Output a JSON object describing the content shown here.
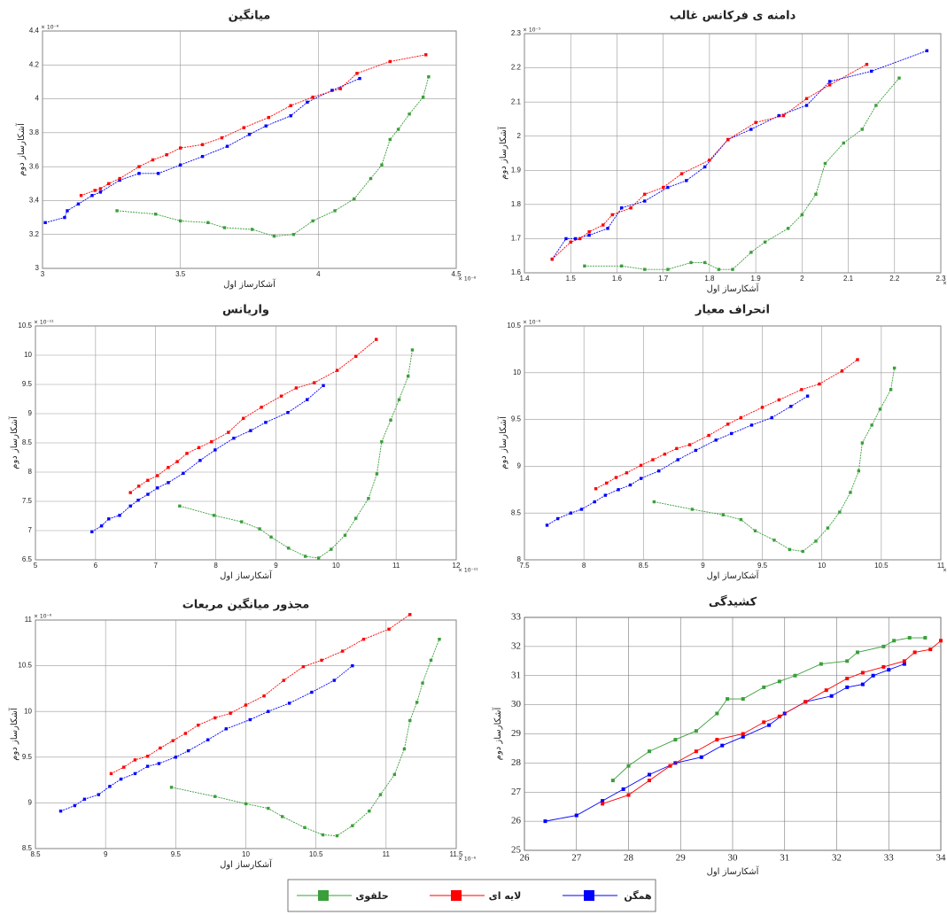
{
  "chart_data": [
    {
      "type": "line",
      "title": "میانگین",
      "xlabel": "آشکارساز اول",
      "ylabel": "آشکارساز دوم",
      "x_exponent": "× 10⁻⁸",
      "y_exponent": "× 10⁻⁸",
      "xlim": [
        3,
        4.5
      ],
      "ylim": [
        3,
        4.4
      ],
      "xticks": [
        3,
        3.5,
        4,
        4.5
      ],
      "yticks": [
        3,
        3.2,
        3.4,
        3.6,
        3.8,
        4,
        4.2,
        4.4
      ],
      "grid": true,
      "series": [
        {
          "color": "#0000ff",
          "x": [
            3.01,
            3.08,
            3.09,
            3.13,
            3.18,
            3.21,
            3.28,
            3.35,
            3.42,
            3.5,
            3.58,
            3.67,
            3.75,
            3.81,
            3.9,
            3.96,
            4.05,
            4.15
          ],
          "values": [
            3.27,
            3.3,
            3.34,
            3.38,
            3.43,
            3.45,
            3.52,
            3.56,
            3.56,
            3.61,
            3.66,
            3.72,
            3.79,
            3.84,
            3.9,
            3.98,
            4.05,
            4.12
          ]
        },
        {
          "color": "#ff0000",
          "x": [
            3.14,
            3.19,
            3.21,
            3.24,
            3.28,
            3.35,
            3.4,
            3.45,
            3.5,
            3.58,
            3.65,
            3.73,
            3.82,
            3.9,
            3.98,
            4.08,
            4.14,
            4.26,
            4.39
          ],
          "values": [
            3.43,
            3.46,
            3.47,
            3.5,
            3.53,
            3.6,
            3.64,
            3.67,
            3.71,
            3.73,
            3.77,
            3.83,
            3.89,
            3.96,
            4.01,
            4.06,
            4.15,
            4.22,
            4.26
          ]
        },
        {
          "color": "#3a9f3a",
          "x": [
            3.27,
            3.41,
            3.5,
            3.6,
            3.66,
            3.76,
            3.84,
            3.91,
            3.98,
            4.06,
            4.13,
            4.19,
            4.23,
            4.26,
            4.29,
            4.33,
            4.38,
            4.4
          ],
          "values": [
            3.34,
            3.32,
            3.28,
            3.27,
            3.24,
            3.23,
            3.19,
            3.2,
            3.28,
            3.34,
            3.41,
            3.53,
            3.61,
            3.76,
            3.82,
            3.91,
            4.01,
            4.13
          ]
        }
      ]
    },
    {
      "type": "line",
      "title": "دامنه ی فرکانس غالب",
      "xlabel": "آشکارساز اول",
      "ylabel": "آشکارساز دوم",
      "x_exponent": "× 10⁻⁵",
      "y_exponent": "× 10⁻⁵",
      "xlim": [
        1.4,
        2.3
      ],
      "ylim": [
        1.6,
        2.3
      ],
      "xticks": [
        1.4,
        1.5,
        1.6,
        1.7,
        1.8,
        1.9,
        2,
        2.1,
        2.2,
        2.3
      ],
      "yticks": [
        1.6,
        1.7,
        1.8,
        1.9,
        2,
        2.1,
        2.2,
        2.3
      ],
      "grid": true,
      "series": [
        {
          "color": "#0000ff",
          "x": [
            1.46,
            1.49,
            1.51,
            1.54,
            1.58,
            1.61,
            1.66,
            1.71,
            1.75,
            1.79,
            1.84,
            1.89,
            1.95,
            2.01,
            2.06,
            2.15,
            2.27
          ],
          "values": [
            1.64,
            1.7,
            1.7,
            1.71,
            1.73,
            1.79,
            1.81,
            1.85,
            1.87,
            1.91,
            1.99,
            2.02,
            2.06,
            2.09,
            2.16,
            2.19,
            2.25
          ]
        },
        {
          "color": "#ff0000",
          "x": [
            1.46,
            1.5,
            1.52,
            1.54,
            1.57,
            1.59,
            1.63,
            1.66,
            1.7,
            1.74,
            1.8,
            1.84,
            1.9,
            1.96,
            2.01,
            2.06,
            2.14
          ],
          "values": [
            1.64,
            1.69,
            1.7,
            1.72,
            1.74,
            1.77,
            1.79,
            1.83,
            1.85,
            1.89,
            1.93,
            1.99,
            2.04,
            2.06,
            2.11,
            2.15,
            2.21
          ]
        },
        {
          "color": "#3a9f3a",
          "x": [
            1.53,
            1.61,
            1.66,
            1.71,
            1.76,
            1.79,
            1.82,
            1.85,
            1.89,
            1.92,
            1.97,
            2,
            2.03,
            2.05,
            2.09,
            2.13,
            2.16,
            2.21
          ],
          "values": [
            1.62,
            1.62,
            1.61,
            1.61,
            1.63,
            1.63,
            1.61,
            1.61,
            1.66,
            1.69,
            1.73,
            1.77,
            1.83,
            1.92,
            1.98,
            2.02,
            2.09,
            2.17
          ]
        }
      ]
    },
    {
      "type": "line",
      "title": "واریانس",
      "xlabel": "آشکارساز اول",
      "ylabel": "آشکارساز دوم",
      "x_exponent": "× 10⁻¹¹",
      "y_exponent": "× 10⁻¹¹",
      "xlim": [
        5,
        12
      ],
      "ylim": [
        6.5,
        10.5
      ],
      "xticks": [
        5,
        6,
        7,
        8,
        9,
        10,
        11,
        12
      ],
      "yticks": [
        6.5,
        7,
        7.5,
        8,
        8.5,
        9,
        9.5,
        10,
        10.5
      ],
      "grid": true,
      "series": [
        {
          "color": "#0000ff",
          "x": [
            5.94,
            6.1,
            6.22,
            6.4,
            6.58,
            6.71,
            6.87,
            7.03,
            7.21,
            7.46,
            7.74,
            7.99,
            8.3,
            8.58,
            8.83,
            9.2,
            9.52,
            9.79
          ],
          "values": [
            6.98,
            7.08,
            7.2,
            7.26,
            7.42,
            7.52,
            7.62,
            7.73,
            7.82,
            7.98,
            8.2,
            8.38,
            8.58,
            8.71,
            8.85,
            9.02,
            9.24,
            9.48
          ]
        },
        {
          "color": "#ff0000",
          "x": [
            6.58,
            6.72,
            6.87,
            7.03,
            7.21,
            7.36,
            7.52,
            7.72,
            7.93,
            8.21,
            8.46,
            8.76,
            9.09,
            9.34,
            9.64,
            10.02,
            10.33,
            10.67
          ],
          "values": [
            7.65,
            7.76,
            7.86,
            7.94,
            8.08,
            8.18,
            8.32,
            8.42,
            8.52,
            8.68,
            8.92,
            9.11,
            9.3,
            9.44,
            9.53,
            9.74,
            9.98,
            10.27
          ]
        },
        {
          "color": "#3a9f3a",
          "x": [
            7.4,
            7.97,
            8.43,
            8.73,
            8.92,
            9.21,
            9.49,
            9.71,
            9.92,
            10.15,
            10.33,
            10.54,
            10.68,
            10.76,
            10.91,
            11.05,
            11.2,
            11.27
          ],
          "values": [
            7.42,
            7.26,
            7.15,
            7.03,
            6.89,
            6.7,
            6.56,
            6.53,
            6.68,
            6.92,
            7.21,
            7.55,
            7.97,
            8.52,
            8.89,
            9.24,
            9.64,
            10.09
          ]
        }
      ]
    },
    {
      "type": "line",
      "title": "انحراف معیار",
      "xlabel": "آشکارساز اول",
      "ylabel": "آشکارساز دوم",
      "x_exponent": "× 10⁻⁶",
      "y_exponent": "× 10⁻⁶",
      "xlim": [
        7.5,
        11
      ],
      "ylim": [
        8,
        10.5
      ],
      "xticks": [
        7.5,
        8,
        8.5,
        9,
        9.5,
        10,
        10.5,
        11
      ],
      "yticks": [
        8,
        8.5,
        9,
        9.5,
        10,
        10.5
      ],
      "grid": true,
      "series": [
        {
          "color": "#0000ff",
          "x": [
            7.69,
            7.78,
            7.89,
            7.98,
            8.09,
            8.18,
            8.29,
            8.39,
            8.48,
            8.63,
            8.79,
            8.94,
            9.11,
            9.24,
            9.41,
            9.58,
            9.74,
            9.88
          ],
          "values": [
            8.37,
            8.44,
            8.5,
            8.54,
            8.62,
            8.69,
            8.75,
            8.8,
            8.87,
            8.95,
            9.07,
            9.17,
            9.28,
            9.35,
            9.44,
            9.52,
            9.64,
            9.75
          ]
        },
        {
          "color": "#ff0000",
          "x": [
            8.1,
            8.19,
            8.27,
            8.36,
            8.48,
            8.58,
            8.68,
            8.78,
            8.89,
            9.05,
            9.21,
            9.32,
            9.5,
            9.64,
            9.83,
            9.98,
            10.17,
            10.3
          ],
          "values": [
            8.76,
            8.82,
            8.88,
            8.93,
            9.01,
            9.07,
            9.13,
            9.19,
            9.23,
            9.33,
            9.45,
            9.52,
            9.63,
            9.71,
            9.82,
            9.88,
            10.02,
            10.14
          ]
        },
        {
          "color": "#3a9f3a",
          "x": [
            8.59,
            8.91,
            9.17,
            9.32,
            9.44,
            9.6,
            9.73,
            9.84,
            9.95,
            10.05,
            10.15,
            10.24,
            10.31,
            10.34,
            10.42,
            10.49,
            10.58,
            10.61
          ],
          "values": [
            8.62,
            8.54,
            8.48,
            8.43,
            8.31,
            8.21,
            8.11,
            8.09,
            8.2,
            8.34,
            8.51,
            8.72,
            8.95,
            9.25,
            9.44,
            9.61,
            9.82,
            10.05
          ]
        }
      ]
    },
    {
      "type": "line",
      "title": "مجذور میانگین مربعات",
      "xlabel": "آشکارساز اول",
      "ylabel": "آشکارساز دوم",
      "x_exponent": "× 10⁻⁶",
      "y_exponent": "× 10⁻⁶",
      "xlim": [
        8.5,
        11.5
      ],
      "ylim": [
        8.5,
        11
      ],
      "xticks": [
        8.5,
        9,
        9.5,
        10,
        10.5,
        11,
        11.5
      ],
      "yticks": [
        8.5,
        9,
        9.5,
        10,
        10.5,
        11
      ],
      "grid": true,
      "series": [
        {
          "color": "#0000ff",
          "x": [
            8.68,
            8.78,
            8.85,
            8.95,
            9.03,
            9.11,
            9.21,
            9.3,
            9.38,
            9.5,
            9.59,
            9.73,
            9.86,
            10.03,
            10.16,
            10.31,
            10.47,
            10.63,
            10.76
          ],
          "values": [
            8.91,
            8.97,
            9.04,
            9.09,
            9.18,
            9.26,
            9.32,
            9.4,
            9.43,
            9.5,
            9.57,
            9.69,
            9.81,
            9.91,
            10,
            10.09,
            10.21,
            10.34,
            10.5
          ]
        },
        {
          "color": "#ff0000",
          "x": [
            9.04,
            9.13,
            9.21,
            9.3,
            9.39,
            9.48,
            9.57,
            9.66,
            9.78,
            9.89,
            10,
            10.13,
            10.27,
            10.41,
            10.54,
            10.69,
            10.84,
            11.02,
            11.17
          ],
          "values": [
            9.32,
            9.39,
            9.47,
            9.51,
            9.6,
            9.68,
            9.76,
            9.85,
            9.93,
            9.98,
            10.07,
            10.17,
            10.34,
            10.49,
            10.56,
            10.66,
            10.79,
            10.9,
            11.06
          ]
        },
        {
          "color": "#3a9f3a",
          "x": [
            9.47,
            9.78,
            10,
            10.16,
            10.26,
            10.42,
            10.55,
            10.65,
            10.76,
            10.88,
            10.96,
            11.06,
            11.13,
            11.17,
            11.22,
            11.26,
            11.32,
            11.38
          ],
          "values": [
            9.17,
            9.07,
            8.99,
            8.94,
            8.85,
            8.73,
            8.65,
            8.64,
            8.75,
            8.91,
            9.09,
            9.31,
            9.59,
            9.9,
            10.1,
            10.31,
            10.56,
            10.79
          ]
        }
      ]
    },
    {
      "type": "line",
      "title": "کشیدگی",
      "xlabel": "آشکارساز اول",
      "ylabel": "آشکارساز دوم",
      "xlim": [
        26,
        34
      ],
      "ylim": [
        25,
        33
      ],
      "xticks": [
        26,
        27,
        28,
        29,
        30,
        31,
        32,
        33,
        34
      ],
      "yticks": [
        25,
        26,
        27,
        28,
        29,
        30,
        31,
        32,
        33
      ],
      "grid": true,
      "series": [
        {
          "color": "#0000ff",
          "x": [
            26.4,
            27,
            27.5,
            27.9,
            28.4,
            28.9,
            29.4,
            29.8,
            30.2,
            30.7,
            31,
            31.4,
            31.9,
            32.2,
            32.5,
            32.7,
            33,
            33.3
          ],
          "values": [
            26,
            26.2,
            26.7,
            27.1,
            27.6,
            28,
            28.2,
            28.6,
            28.9,
            29.3,
            29.7,
            30.1,
            30.3,
            30.6,
            30.7,
            31,
            31.2,
            31.4
          ]
        },
        {
          "color": "#ff0000",
          "x": [
            27.5,
            28,
            28.4,
            28.8,
            29.3,
            29.7,
            30.2,
            30.6,
            30.9,
            31.4,
            31.8,
            32.2,
            32.5,
            32.9,
            33.3,
            33.5,
            33.8,
            34
          ],
          "values": [
            26.6,
            26.9,
            27.4,
            27.9,
            28.4,
            28.8,
            29,
            29.4,
            29.6,
            30.1,
            30.5,
            30.9,
            31.1,
            31.3,
            31.5,
            31.8,
            31.9,
            32.2
          ]
        },
        {
          "color": "#3a9f3a",
          "x": [
            27.7,
            28,
            28.4,
            28.9,
            29.3,
            29.7,
            29.9,
            30.2,
            30.6,
            30.9,
            31.2,
            31.7,
            32.2,
            32.4,
            32.9,
            33.1,
            33.4,
            33.7
          ],
          "values": [
            27.4,
            27.9,
            28.4,
            28.8,
            29.1,
            29.7,
            30.2,
            30.2,
            30.6,
            30.8,
            31,
            31.4,
            31.5,
            31.8,
            32,
            32.2,
            32.3,
            32.3
          ]
        }
      ]
    }
  ],
  "legend": [
    {
      "name": "همگن",
      "color": "#0000ff"
    },
    {
      "name": "لایه ای",
      "color": "#ff0000"
    },
    {
      "name": "حلقوی",
      "color": "#3a9f3a"
    }
  ]
}
